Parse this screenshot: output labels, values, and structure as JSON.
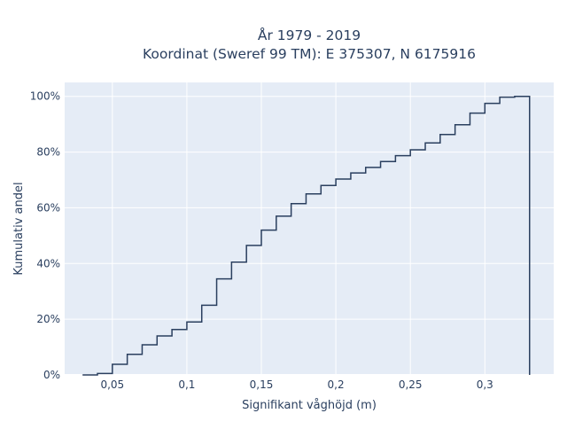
{
  "chart_data": {
    "type": "line",
    "line_shape": "step",
    "title_lines": [
      "År 1979 - 2019",
      "Koordinat (Sweref 99 TM): E 375307, N 6175916"
    ],
    "xlabel": "Signifikant våghöjd (m)",
    "ylabel": "Kumulativ andel",
    "xlim": [
      0.018,
      0.3462
    ],
    "ylim": [
      0,
      1.05
    ],
    "x_ticks": [
      0.05,
      0.1,
      0.15,
      0.2,
      0.25,
      0.3
    ],
    "x_tick_labels": [
      "0,05",
      "0,1",
      "0,15",
      "0,2",
      "0,25",
      "0,3"
    ],
    "y_ticks": [
      0,
      0.2,
      0.4,
      0.6,
      0.8,
      1.0
    ],
    "y_tick_labels": [
      "0%",
      "20%",
      "40%",
      "60%",
      "80%",
      "100%"
    ],
    "grid": true,
    "plot_background": "#e5ecf6",
    "line_color": "#2a3f5f",
    "series": [
      {
        "x": [
          0.03,
          0.04,
          0.05,
          0.06,
          0.07,
          0.08,
          0.09,
          0.1,
          0.11,
          0.12,
          0.13,
          0.14,
          0.15,
          0.16,
          0.17,
          0.18,
          0.19,
          0.2,
          0.21,
          0.22,
          0.23,
          0.24,
          0.25,
          0.26,
          0.27,
          0.28,
          0.29,
          0.3,
          0.31,
          0.32,
          0.33,
          0.33
        ],
        "y": [
          0.0,
          0.005,
          0.038,
          0.074,
          0.108,
          0.14,
          0.163,
          0.19,
          0.25,
          0.345,
          0.405,
          0.465,
          0.52,
          0.57,
          0.615,
          0.65,
          0.68,
          0.703,
          0.725,
          0.745,
          0.766,
          0.787,
          0.808,
          0.833,
          0.863,
          0.898,
          0.94,
          0.975,
          0.997,
          1.0,
          1.0,
          0.0
        ]
      }
    ]
  }
}
